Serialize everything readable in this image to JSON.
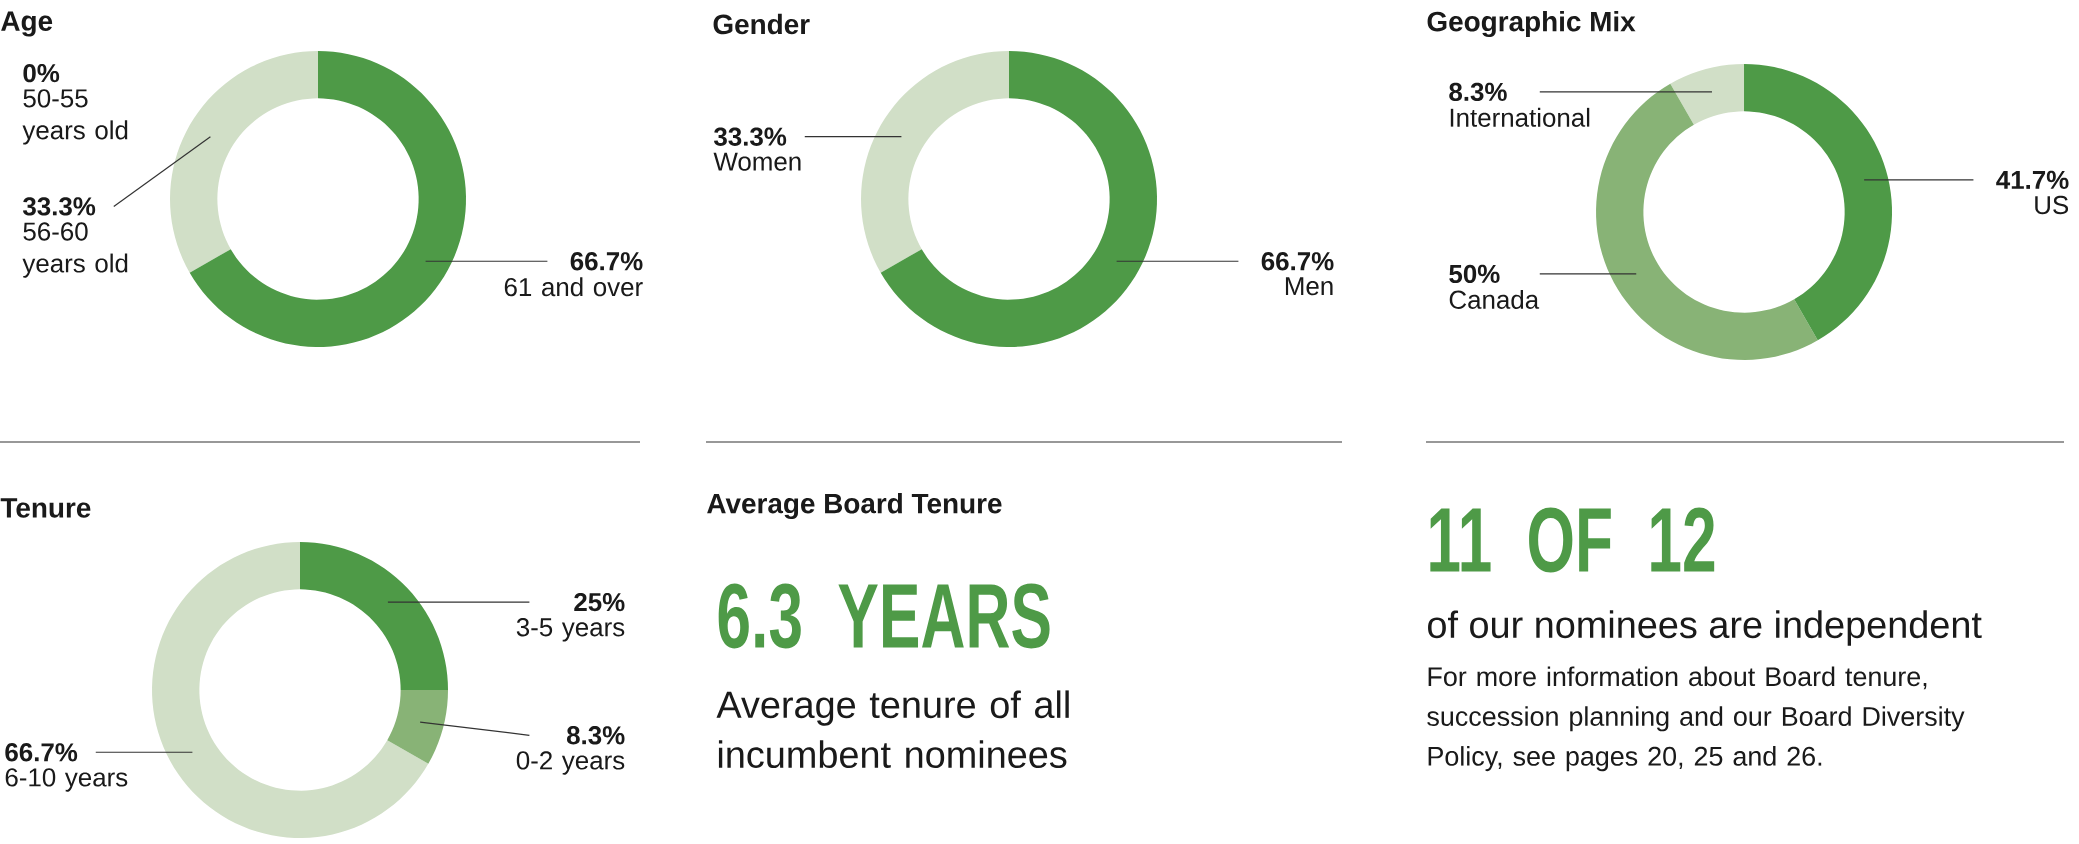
{
  "chart_data": [
    {
      "type": "donut",
      "title": "Age",
      "categories": [
        "50-55 years old",
        "56-60 years old",
        "61 and over"
      ],
      "values": [
        0,
        33.3,
        66.7
      ],
      "value_labels": [
        "0%",
        "33.3%",
        "66.7%"
      ],
      "colors": [
        "#d1dfc7",
        "#d1dfc7",
        "#4e9a47"
      ]
    },
    {
      "type": "donut",
      "title": "Gender",
      "categories": [
        "Women",
        "Men"
      ],
      "values": [
        33.3,
        66.7
      ],
      "value_labels": [
        "33.3%",
        "66.7%"
      ],
      "colors": [
        "#d1dfc7",
        "#4e9a47"
      ]
    },
    {
      "type": "donut",
      "title": "Geographic Mix",
      "categories": [
        "International",
        "Canada",
        "US"
      ],
      "values": [
        8.3,
        50,
        41.7
      ],
      "value_labels": [
        "8.3%",
        "50%",
        "41.7%"
      ],
      "colors": [
        "#d1dfc7",
        "#88b376",
        "#4e9a47"
      ]
    },
    {
      "type": "donut",
      "title": "Tenure",
      "categories": [
        "6-10 years",
        "0-2 years",
        "3-5 years"
      ],
      "values": [
        66.7,
        8.3,
        25
      ],
      "value_labels": [
        "66.7%",
        "8.3%",
        "25%"
      ],
      "colors": [
        "#d1dfc7",
        "#88b376",
        "#4e9a47"
      ]
    },
    {
      "type": "other",
      "title": "Average Board Tenure",
      "annotations": [
        "6.3 YEARS",
        "Average tenure of all incumbent nominees"
      ]
    },
    {
      "type": "other",
      "annotations": [
        "11 OF 12",
        "of our nominees are independent",
        "For more information about Board tenure, succession planning and our Board Diversity Policy, see pages 20, 25 and 26."
      ]
    }
  ]
}
